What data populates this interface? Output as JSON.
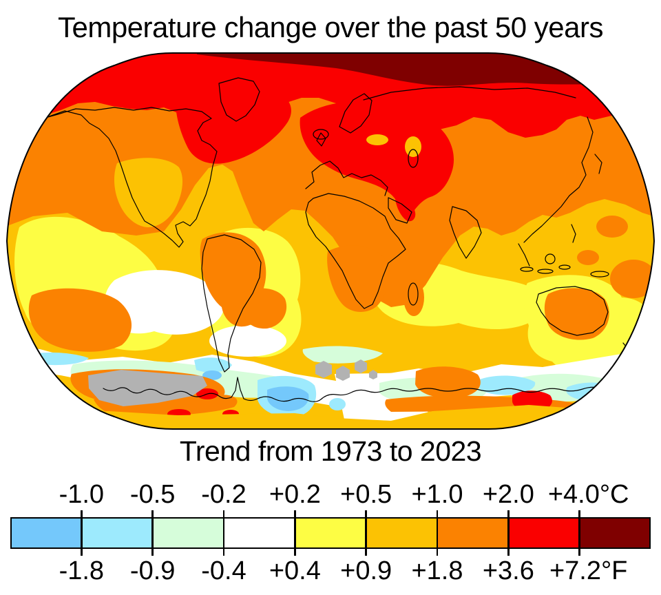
{
  "title": "Temperature change over the past 50 years",
  "subtitle": "Trend from 1973 to 2023",
  "map": {
    "description": "World map, Robinson projection, contour-filled temperature trend 1973-2023",
    "palette": {
      "blue": "#74c8fb",
      "cyan": "#9deafd",
      "mint": "#d6fdda",
      "white": "#ffffff",
      "yellow": "#fdfd44",
      "gold": "#fcc203",
      "orange": "#fb8201",
      "red": "#fa0000",
      "maroon": "#7f0000",
      "gray": "#b2b2b2",
      "coastline": "#000000"
    }
  },
  "legend": {
    "colors": [
      "#74c8fb",
      "#9deafd",
      "#d6fdda",
      "#ffffff",
      "#fdfd44",
      "#fcc203",
      "#fb8201",
      "#fa0000",
      "#7f0000"
    ],
    "celsius_labels": [
      "-1.0",
      "-0.5",
      "-0.2",
      "+0.2",
      "+0.5",
      "+1.0",
      "+2.0",
      "+4.0°C"
    ],
    "fahrenheit_labels": [
      "-1.8",
      "-0.9",
      "-0.4",
      "+0.4",
      "+0.9",
      "+1.8",
      "+3.6",
      "+7.2°F"
    ]
  },
  "chart_data": {
    "type": "heatmap",
    "title": "Temperature change over the past 50 years",
    "subtitle": "Trend from 1973 to 2023",
    "units": [
      "°C",
      "°F"
    ],
    "scale_breaks_c": [
      -1.0,
      -0.5,
      -0.2,
      0.2,
      0.5,
      1.0,
      2.0,
      4.0
    ],
    "scale_breaks_f": [
      -1.8,
      -0.9,
      -0.4,
      0.4,
      0.9,
      1.8,
      3.6,
      7.2
    ],
    "bin_colors": [
      "#74c8fb",
      "#9deafd",
      "#d6fdda",
      "#ffffff",
      "#fdfd44",
      "#fcc203",
      "#fb8201",
      "#fa0000",
      "#7f0000"
    ],
    "no_data_color": "#b2b2b2",
    "legend_position": "bottom"
  }
}
